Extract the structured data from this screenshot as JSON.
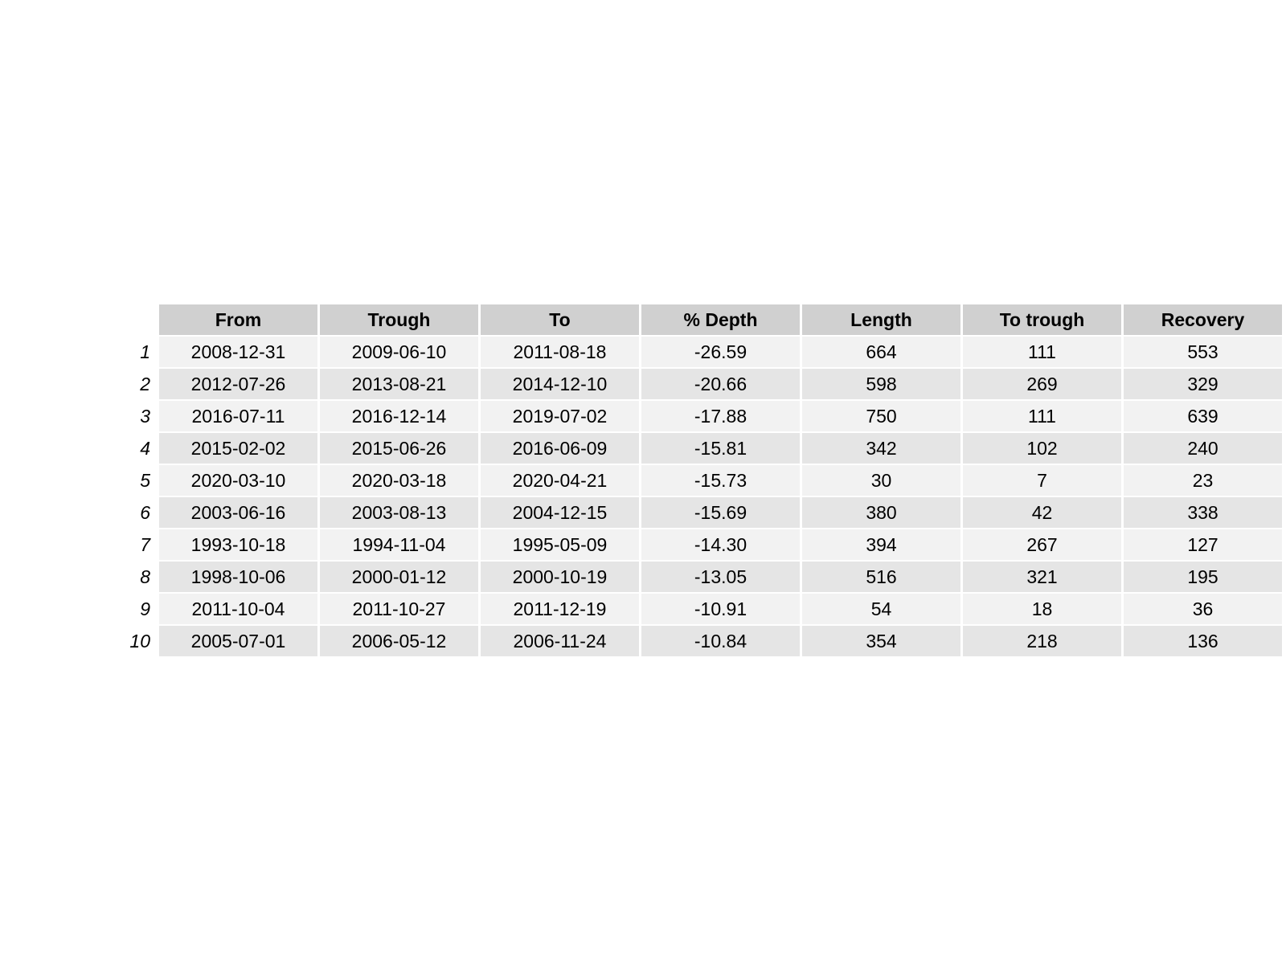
{
  "chart_data": {
    "type": "table",
    "columns": [
      "From",
      "Trough",
      "To",
      "% Depth",
      "Length",
      "To trough",
      "Recovery"
    ],
    "row_labels": [
      "1",
      "2",
      "3",
      "4",
      "5",
      "6",
      "7",
      "8",
      "9",
      "10"
    ],
    "rows": [
      [
        "2008-12-31",
        "2009-06-10",
        "2011-08-18",
        "-26.59",
        "664",
        "111",
        "553"
      ],
      [
        "2012-07-26",
        "2013-08-21",
        "2014-12-10",
        "-20.66",
        "598",
        "269",
        "329"
      ],
      [
        "2016-07-11",
        "2016-12-14",
        "2019-07-02",
        "-17.88",
        "750",
        "111",
        "639"
      ],
      [
        "2015-02-02",
        "2015-06-26",
        "2016-06-09",
        "-15.81",
        "342",
        "102",
        "240"
      ],
      [
        "2020-03-10",
        "2020-03-18",
        "2020-04-21",
        "-15.73",
        "30",
        "7",
        "23"
      ],
      [
        "2003-06-16",
        "2003-08-13",
        "2004-12-15",
        "-15.69",
        "380",
        "42",
        "338"
      ],
      [
        "1993-10-18",
        "1994-11-04",
        "1995-05-09",
        "-14.30",
        "394",
        "267",
        "127"
      ],
      [
        "1998-10-06",
        "2000-01-12",
        "2000-10-19",
        "-13.05",
        "516",
        "321",
        "195"
      ],
      [
        "2011-10-04",
        "2011-10-27",
        "2011-12-19",
        "-10.91",
        "54",
        "18",
        "36"
      ],
      [
        "2005-07-01",
        "2006-05-12",
        "2006-11-24",
        "-10.84",
        "354",
        "218",
        "136"
      ]
    ],
    "colors": {
      "header_bg": "#d0d0d0",
      "row_odd_bg": "#f2f2f2",
      "row_even_bg": "#e5e5e5"
    }
  }
}
